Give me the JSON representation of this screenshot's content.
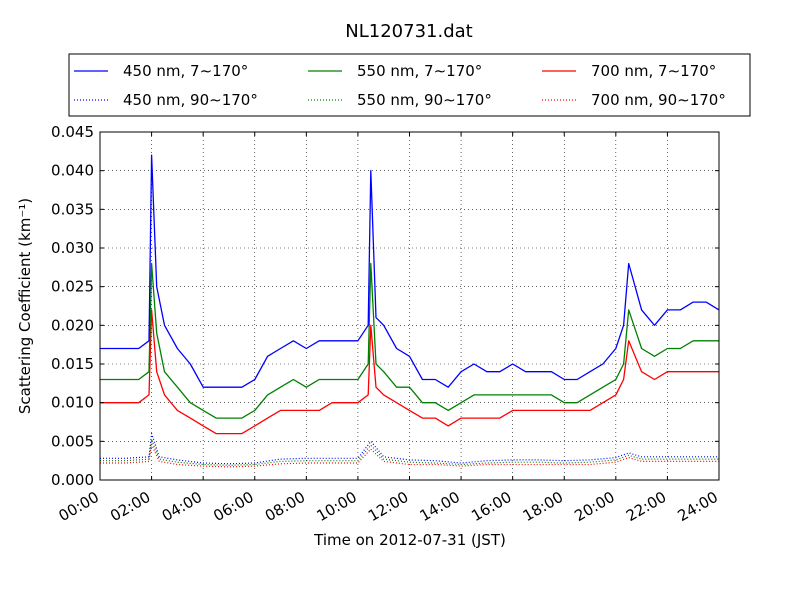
{
  "chart_data": {
    "type": "line",
    "title": "NL120731.dat",
    "xlabel": "Time on 2012-07-31 (JST)",
    "ylabel": "Scattering Coefficient (km⁻¹)",
    "xlim": [
      0,
      24
    ],
    "ylim": [
      0,
      0.045
    ],
    "x_ticks": [
      "00:00",
      "02:00",
      "04:00",
      "06:00",
      "08:00",
      "10:00",
      "12:00",
      "14:00",
      "16:00",
      "18:00",
      "20:00",
      "22:00",
      "24:00"
    ],
    "y_ticks": [
      "0.000",
      "0.005",
      "0.010",
      "0.015",
      "0.020",
      "0.025",
      "0.030",
      "0.035",
      "0.040",
      "0.045"
    ],
    "grid": true,
    "legend_position": "above plot, 3 columns",
    "x_unit": "hours",
    "series": [
      {
        "name": "450 nm, 7∼170°",
        "color": "#0000ff",
        "style": "solid",
        "x": [
          0,
          0.5,
          1,
          1.5,
          1.9,
          2.0,
          2.2,
          2.5,
          3,
          3.5,
          4,
          4.5,
          5,
          5.5,
          6,
          6.5,
          7,
          7.5,
          8,
          8.5,
          9,
          9.5,
          10,
          10.4,
          10.5,
          10.7,
          11,
          11.5,
          12,
          12.5,
          13,
          13.5,
          14,
          14.5,
          15,
          15.5,
          16,
          16.5,
          17,
          17.5,
          18,
          18.5,
          19,
          19.5,
          20,
          20.3,
          20.5,
          21,
          21.5,
          22,
          22.5,
          23,
          23.5,
          24
        ],
        "y": [
          0.017,
          0.017,
          0.017,
          0.017,
          0.018,
          0.042,
          0.025,
          0.02,
          0.017,
          0.015,
          0.012,
          0.012,
          0.012,
          0.012,
          0.013,
          0.016,
          0.017,
          0.018,
          0.017,
          0.018,
          0.018,
          0.018,
          0.018,
          0.02,
          0.04,
          0.021,
          0.02,
          0.017,
          0.016,
          0.013,
          0.013,
          0.012,
          0.014,
          0.015,
          0.014,
          0.014,
          0.015,
          0.014,
          0.014,
          0.014,
          0.013,
          0.013,
          0.014,
          0.015,
          0.017,
          0.02,
          0.028,
          0.022,
          0.02,
          0.022,
          0.022,
          0.023,
          0.023,
          0.022
        ]
      },
      {
        "name": "550 nm, 7∼170°",
        "color": "#008000",
        "style": "solid",
        "x": [
          0,
          0.5,
          1,
          1.5,
          1.9,
          2.0,
          2.2,
          2.5,
          3,
          3.5,
          4,
          4.5,
          5,
          5.5,
          6,
          6.5,
          7,
          7.5,
          8,
          8.5,
          9,
          9.5,
          10,
          10.4,
          10.5,
          10.7,
          11,
          11.5,
          12,
          12.5,
          13,
          13.5,
          14,
          14.5,
          15,
          15.5,
          16,
          16.5,
          17,
          17.5,
          18,
          18.5,
          19,
          19.5,
          20,
          20.3,
          20.5,
          21,
          21.5,
          22,
          22.5,
          23,
          23.5,
          24
        ],
        "y": [
          0.013,
          0.013,
          0.013,
          0.013,
          0.014,
          0.028,
          0.019,
          0.014,
          0.012,
          0.01,
          0.009,
          0.008,
          0.008,
          0.008,
          0.009,
          0.011,
          0.012,
          0.013,
          0.012,
          0.013,
          0.013,
          0.013,
          0.013,
          0.015,
          0.028,
          0.015,
          0.014,
          0.012,
          0.012,
          0.01,
          0.01,
          0.009,
          0.01,
          0.011,
          0.011,
          0.011,
          0.011,
          0.011,
          0.011,
          0.011,
          0.01,
          0.01,
          0.011,
          0.012,
          0.013,
          0.015,
          0.022,
          0.017,
          0.016,
          0.017,
          0.017,
          0.018,
          0.018,
          0.018
        ]
      },
      {
        "name": "700 nm, 7∼170°",
        "color": "#ff0000",
        "style": "solid",
        "x": [
          0,
          0.5,
          1,
          1.5,
          1.9,
          2.0,
          2.2,
          2.5,
          3,
          3.5,
          4,
          4.5,
          5,
          5.5,
          6,
          6.5,
          7,
          7.5,
          8,
          8.5,
          9,
          9.5,
          10,
          10.4,
          10.5,
          10.7,
          11,
          11.5,
          12,
          12.5,
          13,
          13.5,
          14,
          14.5,
          15,
          15.5,
          16,
          16.5,
          17,
          17.5,
          18,
          18.5,
          19,
          19.5,
          20,
          20.3,
          20.5,
          21,
          21.5,
          22,
          22.5,
          23,
          23.5,
          24
        ],
        "y": [
          0.01,
          0.01,
          0.01,
          0.01,
          0.011,
          0.022,
          0.014,
          0.011,
          0.009,
          0.008,
          0.007,
          0.006,
          0.006,
          0.006,
          0.007,
          0.008,
          0.009,
          0.009,
          0.009,
          0.009,
          0.01,
          0.01,
          0.01,
          0.011,
          0.02,
          0.012,
          0.011,
          0.01,
          0.009,
          0.008,
          0.008,
          0.007,
          0.008,
          0.008,
          0.008,
          0.008,
          0.009,
          0.009,
          0.009,
          0.009,
          0.009,
          0.009,
          0.009,
          0.01,
          0.011,
          0.013,
          0.018,
          0.014,
          0.013,
          0.014,
          0.014,
          0.014,
          0.014,
          0.014
        ]
      },
      {
        "name": "450 nm, 90∼170°",
        "color": "#0000ff",
        "style": "dotted",
        "x": [
          0,
          1,
          1.9,
          2.0,
          2.3,
          3,
          4,
          5,
          6,
          7,
          8,
          9,
          10,
          10.5,
          11,
          12,
          13,
          14,
          15,
          16,
          17,
          18,
          19,
          20,
          20.5,
          21,
          22,
          23,
          24
        ],
        "y": [
          0.0028,
          0.0028,
          0.003,
          0.006,
          0.003,
          0.0026,
          0.0022,
          0.0021,
          0.0022,
          0.0027,
          0.0028,
          0.0028,
          0.0028,
          0.005,
          0.003,
          0.0026,
          0.0025,
          0.0022,
          0.0025,
          0.0026,
          0.0026,
          0.0025,
          0.0026,
          0.0029,
          0.0035,
          0.003,
          0.003,
          0.003,
          0.003
        ]
      },
      {
        "name": "550 nm, 90∼170°",
        "color": "#008000",
        "style": "dotted",
        "x": [
          0,
          1,
          1.9,
          2.0,
          2.3,
          3,
          4,
          5,
          6,
          7,
          8,
          9,
          10,
          10.5,
          11,
          12,
          13,
          14,
          15,
          16,
          17,
          18,
          19,
          20,
          20.5,
          21,
          22,
          23,
          24
        ],
        "y": [
          0.0025,
          0.0025,
          0.0027,
          0.0052,
          0.0027,
          0.0023,
          0.002,
          0.0019,
          0.002,
          0.0024,
          0.0025,
          0.0025,
          0.0025,
          0.0045,
          0.0027,
          0.0023,
          0.0022,
          0.002,
          0.0022,
          0.0023,
          0.0023,
          0.0022,
          0.0023,
          0.0026,
          0.0032,
          0.0027,
          0.0027,
          0.0027,
          0.0027
        ]
      },
      {
        "name": "700 nm, 90∼170°",
        "color": "#ff0000",
        "style": "dotted",
        "x": [
          0,
          1,
          1.9,
          2.0,
          2.3,
          3,
          4,
          5,
          6,
          7,
          8,
          9,
          10,
          10.5,
          11,
          12,
          13,
          14,
          15,
          16,
          17,
          18,
          19,
          20,
          20.5,
          21,
          22,
          23,
          24
        ],
        "y": [
          0.0022,
          0.0022,
          0.0024,
          0.0046,
          0.0024,
          0.002,
          0.0018,
          0.0017,
          0.0018,
          0.0021,
          0.0022,
          0.0022,
          0.0022,
          0.004,
          0.0024,
          0.002,
          0.002,
          0.0018,
          0.002,
          0.002,
          0.002,
          0.002,
          0.002,
          0.0023,
          0.0029,
          0.0024,
          0.0024,
          0.0024,
          0.0024
        ]
      }
    ]
  }
}
